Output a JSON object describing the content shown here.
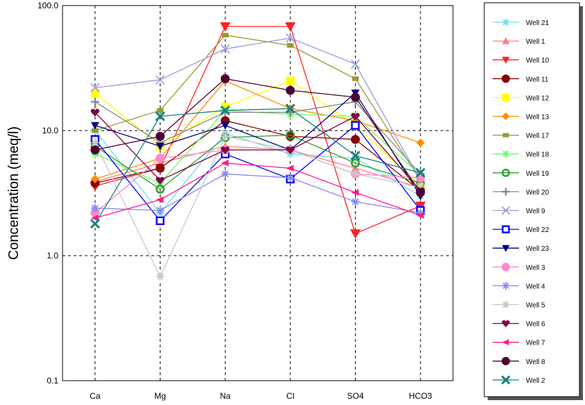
{
  "chart_data": {
    "type": "line",
    "title": "",
    "xlabel": "",
    "ylabel": "Concentration (meq/l)",
    "y_scale": "log",
    "ylim": [
      0.1,
      100
    ],
    "y_ticks": [
      0.1,
      1.0,
      10.0,
      100.0
    ],
    "y_tick_labels": [
      "0.1",
      "1.0",
      "10.0",
      "100.0"
    ],
    "categories": [
      "Ca",
      "Mg",
      "Na",
      "Cl",
      "SO4",
      "HCO3"
    ],
    "grid": "dashed",
    "legend_position": "right",
    "series": [
      {
        "name": "Well 21",
        "color": "#66e0f0",
        "marker": "asterisk",
        "values": [
          10.0,
          2.2,
          9.5,
          6.5,
          6.0,
          3.0
        ]
      },
      {
        "name": "Well 1",
        "color": "#ff8080",
        "marker": "triangle-up",
        "values": [
          3.9,
          5.5,
          7.5,
          7.0,
          5.0,
          3.5
        ]
      },
      {
        "name": "Well 10",
        "color": "#ff2020",
        "marker": "triangle-down",
        "values": [
          3.6,
          5.0,
          68.0,
          68.0,
          1.5,
          2.5
        ]
      },
      {
        "name": "Well 11",
        "color": "#8b0000",
        "marker": "circle",
        "values": [
          3.8,
          5.0,
          12.0,
          9.0,
          8.5,
          3.3
        ]
      },
      {
        "name": "Well 12",
        "color": "#ffff00",
        "marker": "square",
        "values": [
          20.0,
          7.5,
          15.5,
          25.0,
          11.0,
          3.6
        ]
      },
      {
        "name": "Well 13",
        "color": "#ff8c00",
        "marker": "diamond",
        "values": [
          4.1,
          6.0,
          25.0,
          15.0,
          12.0,
          8.0
        ]
      },
      {
        "name": "Well 17",
        "color": "#999933",
        "marker": "square-small",
        "values": [
          10.0,
          14.5,
          58.0,
          48.0,
          26.0,
          4.0
        ]
      },
      {
        "name": "Well 18",
        "color": "#66ff66",
        "marker": "star",
        "values": [
          6.5,
          3.8,
          14.5,
          13.5,
          13.0,
          4.4
        ]
      },
      {
        "name": "Well 19",
        "color": "#2a9d2a",
        "marker": "circle-open",
        "values": [
          7.5,
          3.4,
          8.8,
          9.2,
          5.5,
          3.8
        ]
      },
      {
        "name": "Well 20",
        "color": "#888888",
        "marker": "plus",
        "values": [
          17.0,
          8.0,
          14.0,
          14.0,
          17.0,
          4.5
        ]
      },
      {
        "name": "Well 9",
        "color": "#9999dd",
        "marker": "x",
        "values": [
          22.0,
          25.5,
          45.0,
          55.0,
          34.0,
          4.0
        ]
      },
      {
        "name": "Well 22",
        "color": "#0000ff",
        "marker": "square-open",
        "values": [
          8.5,
          1.9,
          6.5,
          4.1,
          11.0,
          2.3
        ]
      },
      {
        "name": "Well 23",
        "color": "#000080",
        "marker": "triangle-down",
        "values": [
          11.0,
          7.5,
          11.0,
          7.0,
          20.0,
          3.0
        ]
      },
      {
        "name": "Well 3",
        "color": "#ff88cc",
        "marker": "circle",
        "values": [
          2.2,
          6.0,
          7.0,
          7.0,
          4.5,
          4.2
        ]
      },
      {
        "name": "Well 4",
        "color": "#8888ee",
        "marker": "star",
        "values": [
          2.4,
          2.3,
          4.5,
          4.2,
          2.7,
          2.2
        ]
      },
      {
        "name": "Well 5",
        "color": "#c8c8c8",
        "marker": "star",
        "values": [
          8.0,
          0.68,
          9.0,
          7.0,
          4.5,
          3.5
        ]
      },
      {
        "name": "Well 6",
        "color": "#800040",
        "marker": "heart",
        "values": [
          14.0,
          4.0,
          7.0,
          7.0,
          13.0,
          3.3
        ]
      },
      {
        "name": "Well 7",
        "color": "#ff1a8c",
        "marker": "triangle-left",
        "values": [
          2.0,
          2.8,
          5.5,
          5.0,
          3.2,
          2.1
        ]
      },
      {
        "name": "Well 8",
        "color": "#4d0033",
        "marker": "circle",
        "values": [
          7.0,
          9.0,
          26.0,
          21.0,
          18.5,
          3.2
        ]
      },
      {
        "name": "Well 2",
        "color": "#1a8080",
        "marker": "x-bold",
        "values": [
          1.8,
          13.0,
          14.5,
          15.0,
          6.3,
          4.6
        ]
      }
    ]
  }
}
